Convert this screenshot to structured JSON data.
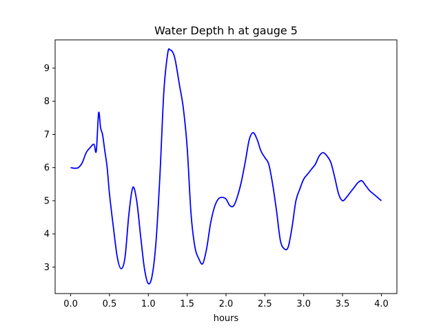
{
  "chart_data": {
    "type": "line",
    "title": "Water Depth h at gauge 5",
    "xlabel": "hours",
    "ylabel": "",
    "xlim": [
      -0.2,
      4.2
    ],
    "ylim": [
      2.2,
      9.85
    ],
    "xticks": [
      0.0,
      0.5,
      1.0,
      1.5,
      2.0,
      2.5,
      3.0,
      3.5,
      4.0
    ],
    "xtick_labels": [
      "0.0",
      "0.5",
      "1.0",
      "1.5",
      "2.0",
      "2.5",
      "3.0",
      "3.5",
      "4.0"
    ],
    "yticks": [
      3,
      4,
      5,
      6,
      7,
      8,
      9
    ],
    "ytick_labels": [
      "3",
      "4",
      "5",
      "6",
      "7",
      "8",
      "9"
    ],
    "grid": false,
    "line_color": "#0000ff",
    "series": [
      {
        "x": [
          0.0,
          0.05,
          0.1,
          0.15,
          0.2,
          0.25,
          0.3,
          0.33,
          0.36,
          0.385,
          0.41,
          0.44,
          0.47,
          0.5,
          0.55,
          0.6,
          0.65,
          0.7,
          0.75,
          0.8,
          0.85,
          0.9,
          0.95,
          1.0,
          1.05,
          1.1,
          1.15,
          1.2,
          1.25,
          1.28,
          1.32,
          1.35,
          1.4,
          1.45,
          1.5,
          1.55,
          1.6,
          1.65,
          1.7,
          1.75,
          1.8,
          1.85,
          1.9,
          1.95,
          2.0,
          2.05,
          2.1,
          2.15,
          2.2,
          2.25,
          2.3,
          2.35,
          2.4,
          2.45,
          2.5,
          2.55,
          2.6,
          2.65,
          2.7,
          2.75,
          2.8,
          2.85,
          2.9,
          2.95,
          3.0,
          3.05,
          3.1,
          3.15,
          3.2,
          3.25,
          3.3,
          3.35,
          3.4,
          3.45,
          3.5,
          3.55,
          3.6,
          3.65,
          3.7,
          3.75,
          3.8,
          3.85,
          3.9,
          3.95,
          4.0
        ],
        "y": [
          6.0,
          5.98,
          6.0,
          6.15,
          6.45,
          6.6,
          6.7,
          6.5,
          7.65,
          7.2,
          7.0,
          6.5,
          6.0,
          5.2,
          4.2,
          3.3,
          2.95,
          3.3,
          4.6,
          5.4,
          5.0,
          3.95,
          2.95,
          2.5,
          2.75,
          3.8,
          5.8,
          8.3,
          9.45,
          9.55,
          9.45,
          9.2,
          8.5,
          7.8,
          6.6,
          4.6,
          3.6,
          3.25,
          3.1,
          3.55,
          4.3,
          4.8,
          5.05,
          5.1,
          5.05,
          4.85,
          4.85,
          5.15,
          5.6,
          6.2,
          6.85,
          7.05,
          6.85,
          6.5,
          6.3,
          6.1,
          5.5,
          4.7,
          3.8,
          3.55,
          3.6,
          4.2,
          5.0,
          5.35,
          5.65,
          5.8,
          5.95,
          6.1,
          6.35,
          6.45,
          6.35,
          6.15,
          5.7,
          5.2,
          5.0,
          5.1,
          5.25,
          5.4,
          5.55,
          5.6,
          5.45,
          5.3,
          5.2,
          5.1,
          5.0
        ]
      }
    ]
  }
}
